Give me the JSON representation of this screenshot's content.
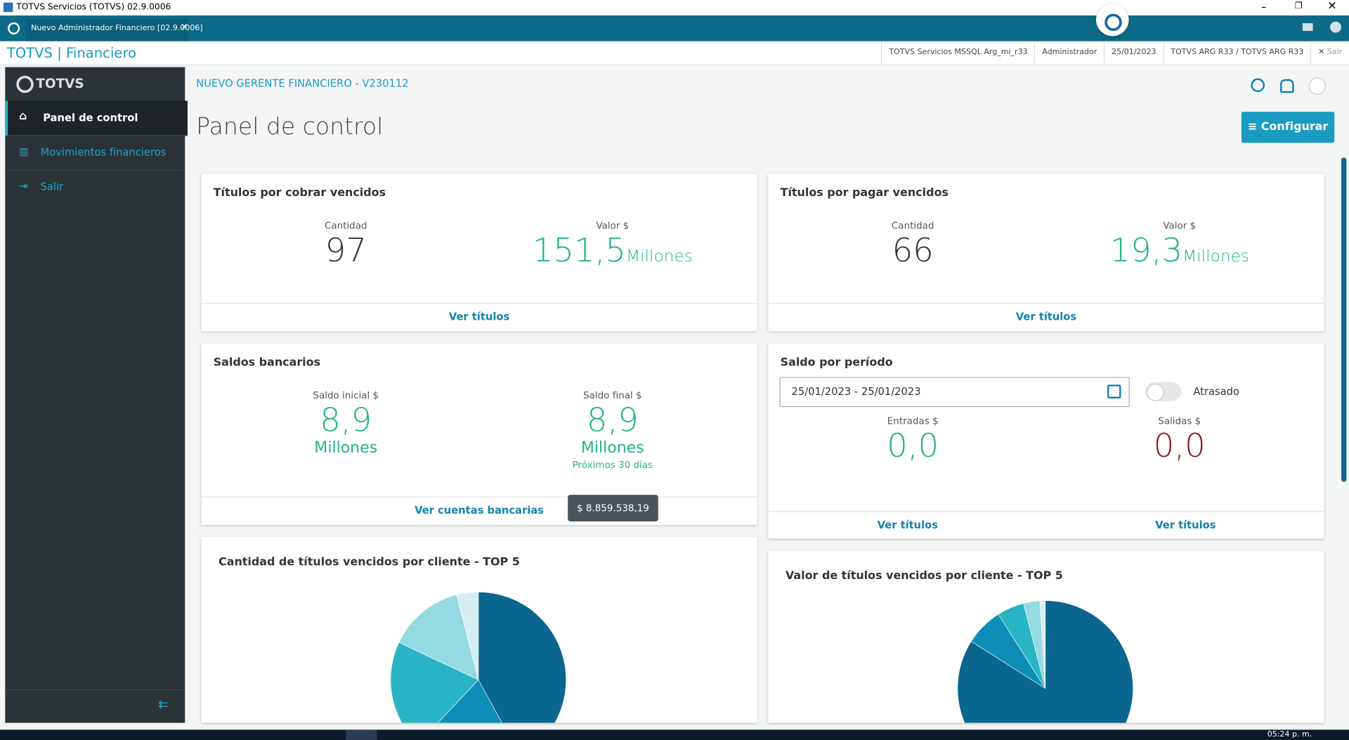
{
  "window": {
    "title": "TOTVS Servicios (TOTVS) 02.9.0006"
  },
  "tab": {
    "label": "Nuevo Administrador Financiero [02.9.0006]"
  },
  "appbar": {
    "brand": "TOTVS | Financiero",
    "status": [
      "TOTVS Servicios MSSQL Arg_mi_r33",
      "Administrador",
      "25/01/2023",
      "TOTVS ARG R33 / TOTVS ARG R33"
    ],
    "exit": "Sair"
  },
  "sidebar": {
    "logo": "TOTVS",
    "items": [
      "Panel de control",
      "Movimientos financieros",
      "Salir"
    ]
  },
  "header": {
    "subtitle": "NUEVO GERENTE FINANCIERO - V230112",
    "title": "Panel de control",
    "button": "Configurar"
  },
  "cards": {
    "receivable": {
      "title": "Títulos por cobrar vencidos",
      "count_label": "Cantidad",
      "count": "97",
      "value_label": "Valor $",
      "value": "151,5",
      "unit": "Millones",
      "link": "Ver títulos"
    },
    "payable": {
      "title": "Títulos por pagar vencidos",
      "count_label": "Cantidad",
      "count": "66",
      "value_label": "Valor $",
      "value": "19,3",
      "unit": "Millones",
      "link": "Ver títulos"
    },
    "bank": {
      "title": "Saldos bancarios",
      "initial_label": "Saldo inicial $",
      "initial": "8,9",
      "initial_unit": "Millones",
      "final_label": "Saldo final $",
      "final": "8,9",
      "final_unit": "Millones",
      "note": "Próximos 30 días",
      "link": "Ver cuentas bancarias",
      "tooltip": "$ 8.859.538,19"
    },
    "period": {
      "title": "Saldo por período",
      "date_range": "25/01/2023 - 25/01/2023",
      "toggle": "Atrasado",
      "in_label": "Entradas $",
      "in": "0,0",
      "out_label": "Salidas $",
      "out": "0,0",
      "links": [
        "Ver títulos",
        "Ver títulos"
      ]
    }
  },
  "charts": [
    {
      "type": "pie",
      "title": "Cantidad de títulos vencidos por cliente - TOP 5",
      "values": [
        42,
        20,
        20,
        14,
        4
      ],
      "colors": [
        "#0b6690",
        "#0e8db8",
        "#29b5c4",
        "#95d9e2",
        "#d6eef2"
      ]
    },
    {
      "type": "pie",
      "title": "Valor de títulos vencidos por cliente - TOP 5",
      "values": [
        84,
        7,
        5,
        3,
        1
      ],
      "colors": [
        "#0b6690",
        "#0e8db8",
        "#29b5c4",
        "#95d9e2",
        "#d6eef2"
      ]
    }
  ],
  "taskbar": {
    "clock": "05:24 p. m."
  }
}
